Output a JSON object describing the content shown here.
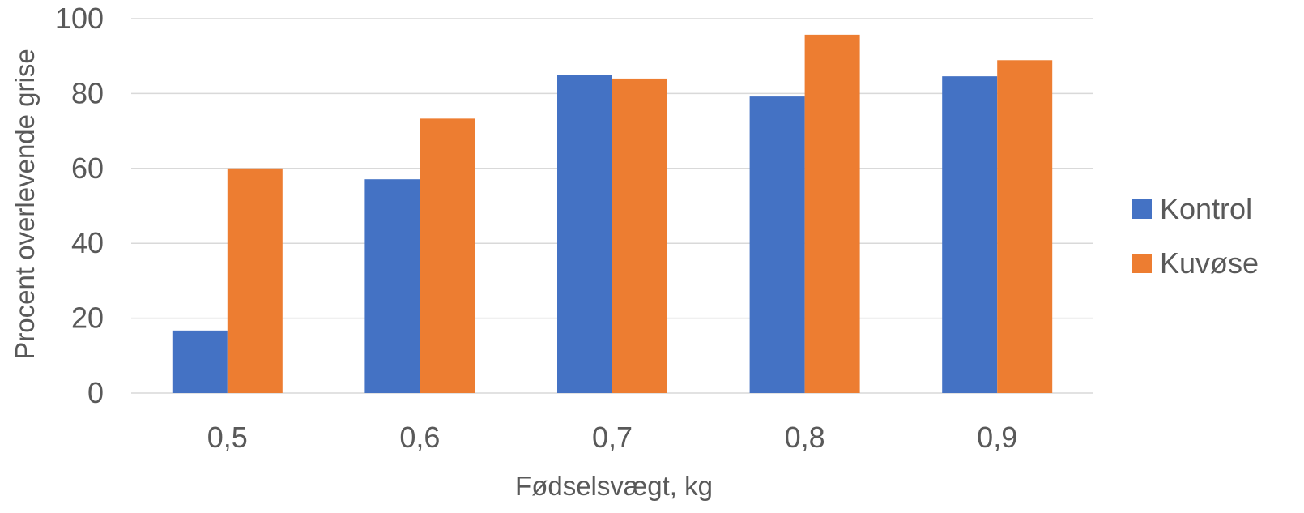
{
  "chart_data": {
    "type": "bar",
    "title": "",
    "xlabel": "Fødselsvægt, kg",
    "ylabel": "Procent overlevende grise",
    "categories": [
      "0,5",
      "0,6",
      "0,7",
      "0,8",
      "0,9"
    ],
    "series": [
      {
        "name": "Kontrol",
        "color": "#4472c4",
        "values": [
          16.7,
          57.1,
          85.0,
          79.2,
          84.6
        ]
      },
      {
        "name": "Kuvøse",
        "color": "#ed7d31",
        "values": [
          60.0,
          73.3,
          84.0,
          95.7,
          88.9
        ]
      }
    ],
    "ylim": [
      0,
      100
    ],
    "yticks": [
      0,
      20,
      40,
      60,
      80,
      100
    ],
    "grid": true,
    "legend_position": "right"
  }
}
